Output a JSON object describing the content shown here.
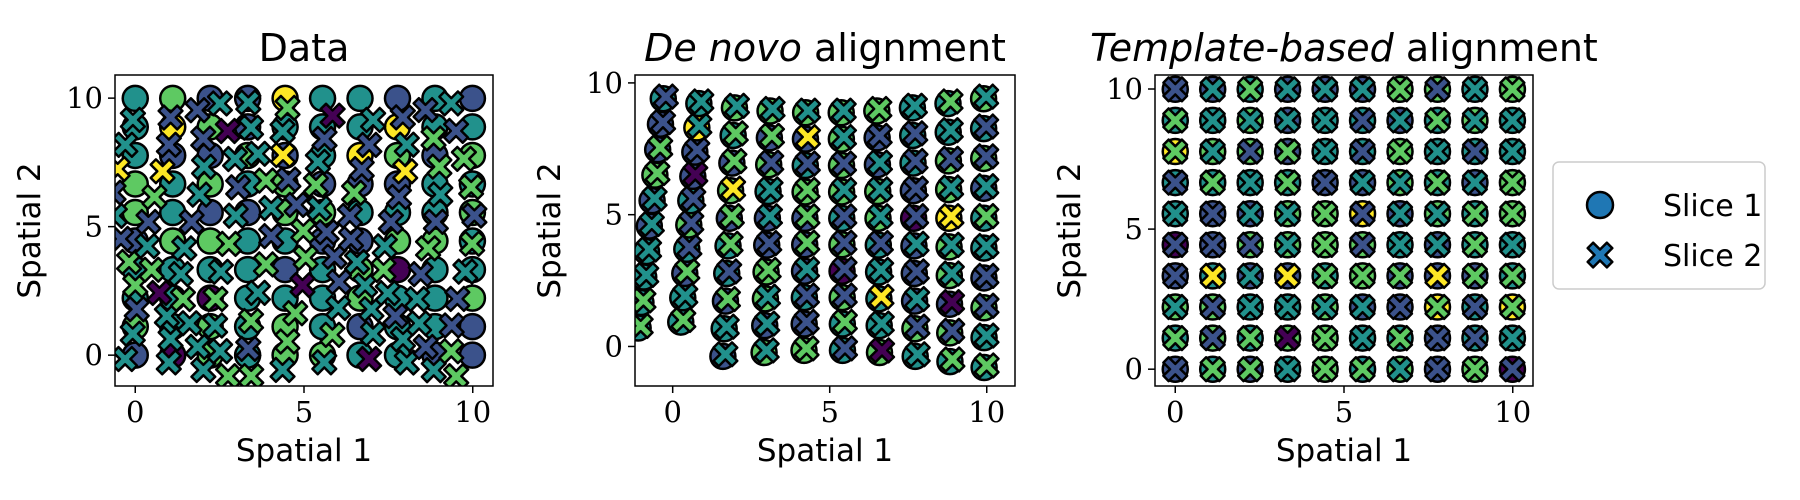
{
  "chart_data": [
    {
      "type": "scatter",
      "title_parts": [
        {
          "text": "Data",
          "italic": false
        }
      ],
      "xlabel": "Spatial 1",
      "ylabel": "Spatial 2",
      "xlim": [
        -0.6,
        10.6
      ],
      "ylim": [
        -1.2,
        10.9
      ],
      "xticks": [
        0,
        5,
        10
      ],
      "yticks": [
        0,
        5,
        10
      ],
      "series": [
        {
          "marker": "circle",
          "layout": "grid",
          "x0": 0,
          "y0": 0,
          "step": 1.11,
          "n": 10
        },
        {
          "marker": "x",
          "layout": "warped",
          "x0": -0.3,
          "y0": -0.5,
          "step": 1.0,
          "n": 11,
          "wave": 0.35
        }
      ]
    },
    {
      "type": "scatter",
      "title_parts": [
        {
          "text": "De novo",
          "italic": true
        },
        {
          "text": " alignment",
          "italic": false
        }
      ],
      "xlabel": "Spatial 1",
      "ylabel": "Spatial 2",
      "xlim": [
        -1.2,
        10.9
      ],
      "ylim": [
        -1.5,
        10.3
      ],
      "xticks": [
        0,
        5,
        10
      ],
      "yticks": [
        0,
        5,
        10
      ],
      "series": [
        {
          "marker": "circle",
          "layout": "curved",
          "n": 10
        },
        {
          "marker": "x",
          "layout": "curved",
          "n": 10
        }
      ]
    },
    {
      "type": "scatter",
      "title_parts": [
        {
          "text": "Template-based",
          "italic": true
        },
        {
          "text": " alignment",
          "italic": false
        }
      ],
      "xlabel": "Spatial 1",
      "ylabel": "Spatial 2",
      "xlim": [
        -0.6,
        10.6
      ],
      "ylim": [
        -0.6,
        10.5
      ],
      "xticks": [
        0,
        5,
        10
      ],
      "yticks": [
        0,
        5,
        10
      ],
      "series": [
        {
          "marker": "circle",
          "layout": "grid",
          "x0": 0,
          "y0": 0,
          "step": 1.11,
          "n": 10
        },
        {
          "marker": "x",
          "layout": "grid",
          "x0": 0,
          "y0": 0,
          "step": 1.11,
          "n": 10
        }
      ]
    }
  ],
  "legend": {
    "placement": "right",
    "entries": [
      {
        "label": "Slice 1",
        "marker": "circle"
      },
      {
        "label": "Slice 2",
        "marker": "x"
      }
    ]
  },
  "colormap": [
    "#440154",
    "#3b528b",
    "#21918c",
    "#5ec962",
    "#fde725"
  ],
  "legend_color": "#1f77b4",
  "edge_color": "#000000"
}
